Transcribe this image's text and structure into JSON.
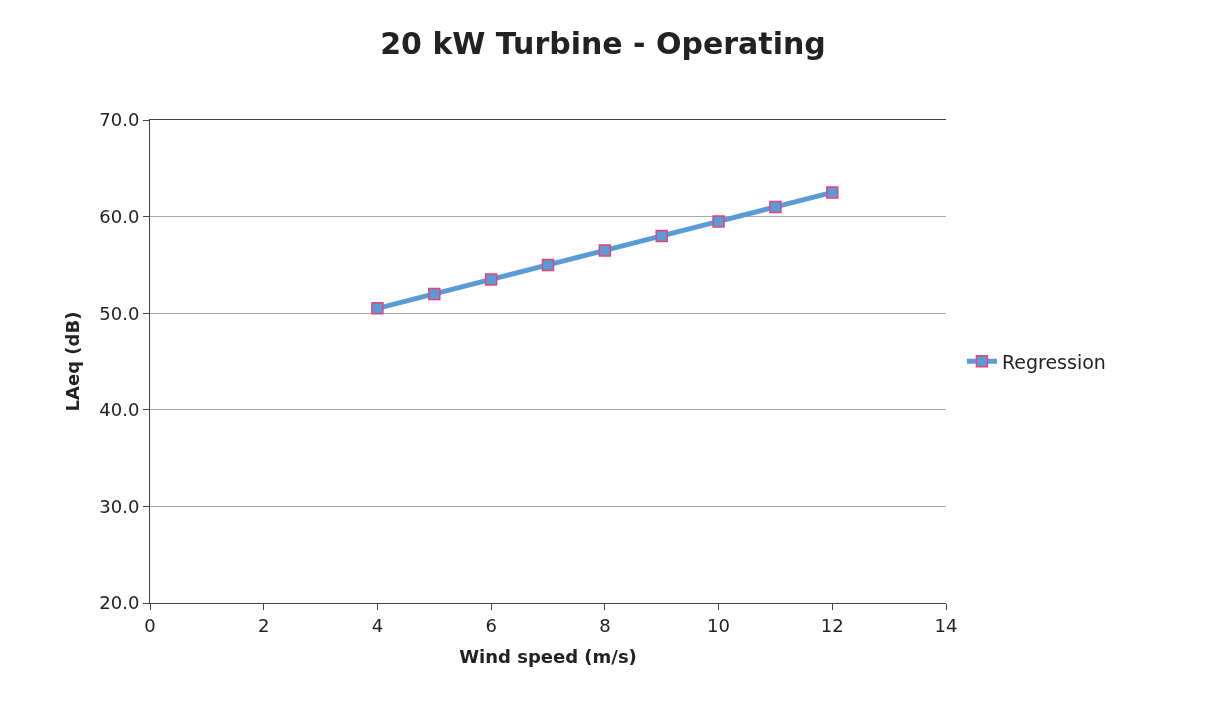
{
  "chart_data": {
    "type": "line",
    "title": "20 kW Turbine - Operating",
    "xlabel": "Wind speed (m/s)",
    "ylabel": "LAeq (dB)",
    "x": [
      4,
      5,
      6,
      7,
      8,
      9,
      10,
      11,
      12
    ],
    "series": [
      {
        "name": "Regression",
        "color": "#5b9bd5",
        "values": [
          50.5,
          52.0,
          53.5,
          55.0,
          56.5,
          58.0,
          59.5,
          61.0,
          62.5
        ]
      }
    ],
    "xlim": [
      0,
      14
    ],
    "xticks": [
      0,
      2,
      4,
      6,
      8,
      10,
      12,
      14
    ],
    "ylim": [
      20,
      70
    ],
    "yticks": [
      {
        "value": 20,
        "label": "20.0"
      },
      {
        "value": 30,
        "label": "30.0"
      },
      {
        "value": 40,
        "label": "40.0"
      },
      {
        "value": 50,
        "label": "50.0"
      },
      {
        "value": 60,
        "label": "60.0"
      },
      {
        "value": 70,
        "label": "70.0"
      }
    ],
    "grid": "y",
    "legend": "right",
    "marker": "square",
    "line_style": "solid"
  }
}
